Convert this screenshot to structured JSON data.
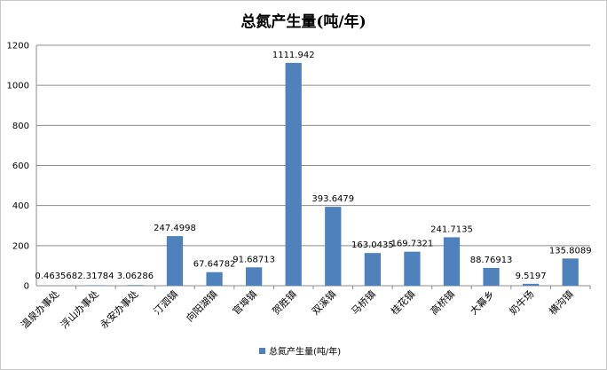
{
  "chart_data": {
    "type": "bar",
    "title": "总氮产生量(吨/年)",
    "categories": [
      "温泉办事处",
      "浮山办事处",
      "永安办事处",
      "汀泗镇",
      "向阳湖镇",
      "官埠镇",
      "贺胜镇",
      "双溪镇",
      "马桥镇",
      "桂花镇",
      "高桥镇",
      "大幕乡",
      "奶牛场",
      "横沟镇"
    ],
    "series": [
      {
        "name": "总氮产生量(吨/年)",
        "values": [
          0.463568,
          2.31784,
          3.06286,
          247.4998,
          67.64782,
          91.68713,
          1111.942,
          393.6479,
          163.0435,
          169.7321,
          241.7135,
          88.76913,
          9.5197,
          135.8089
        ],
        "labels": [
          "0.463568",
          "2.31784",
          "3.06286",
          "247.4998",
          "67.64782",
          "91.68713",
          "1111.942",
          "393.6479",
          "163.0435",
          "169.7321",
          "241.7135",
          "88.76913",
          "9.5197",
          "135.8089"
        ],
        "color": "#4f81bd"
      }
    ],
    "yticks": [
      "0",
      "200",
      "400",
      "600",
      "800",
      "1000",
      "1200"
    ],
    "ylim": [
      0,
      1200
    ],
    "grid": true,
    "legend": "bottom"
  }
}
